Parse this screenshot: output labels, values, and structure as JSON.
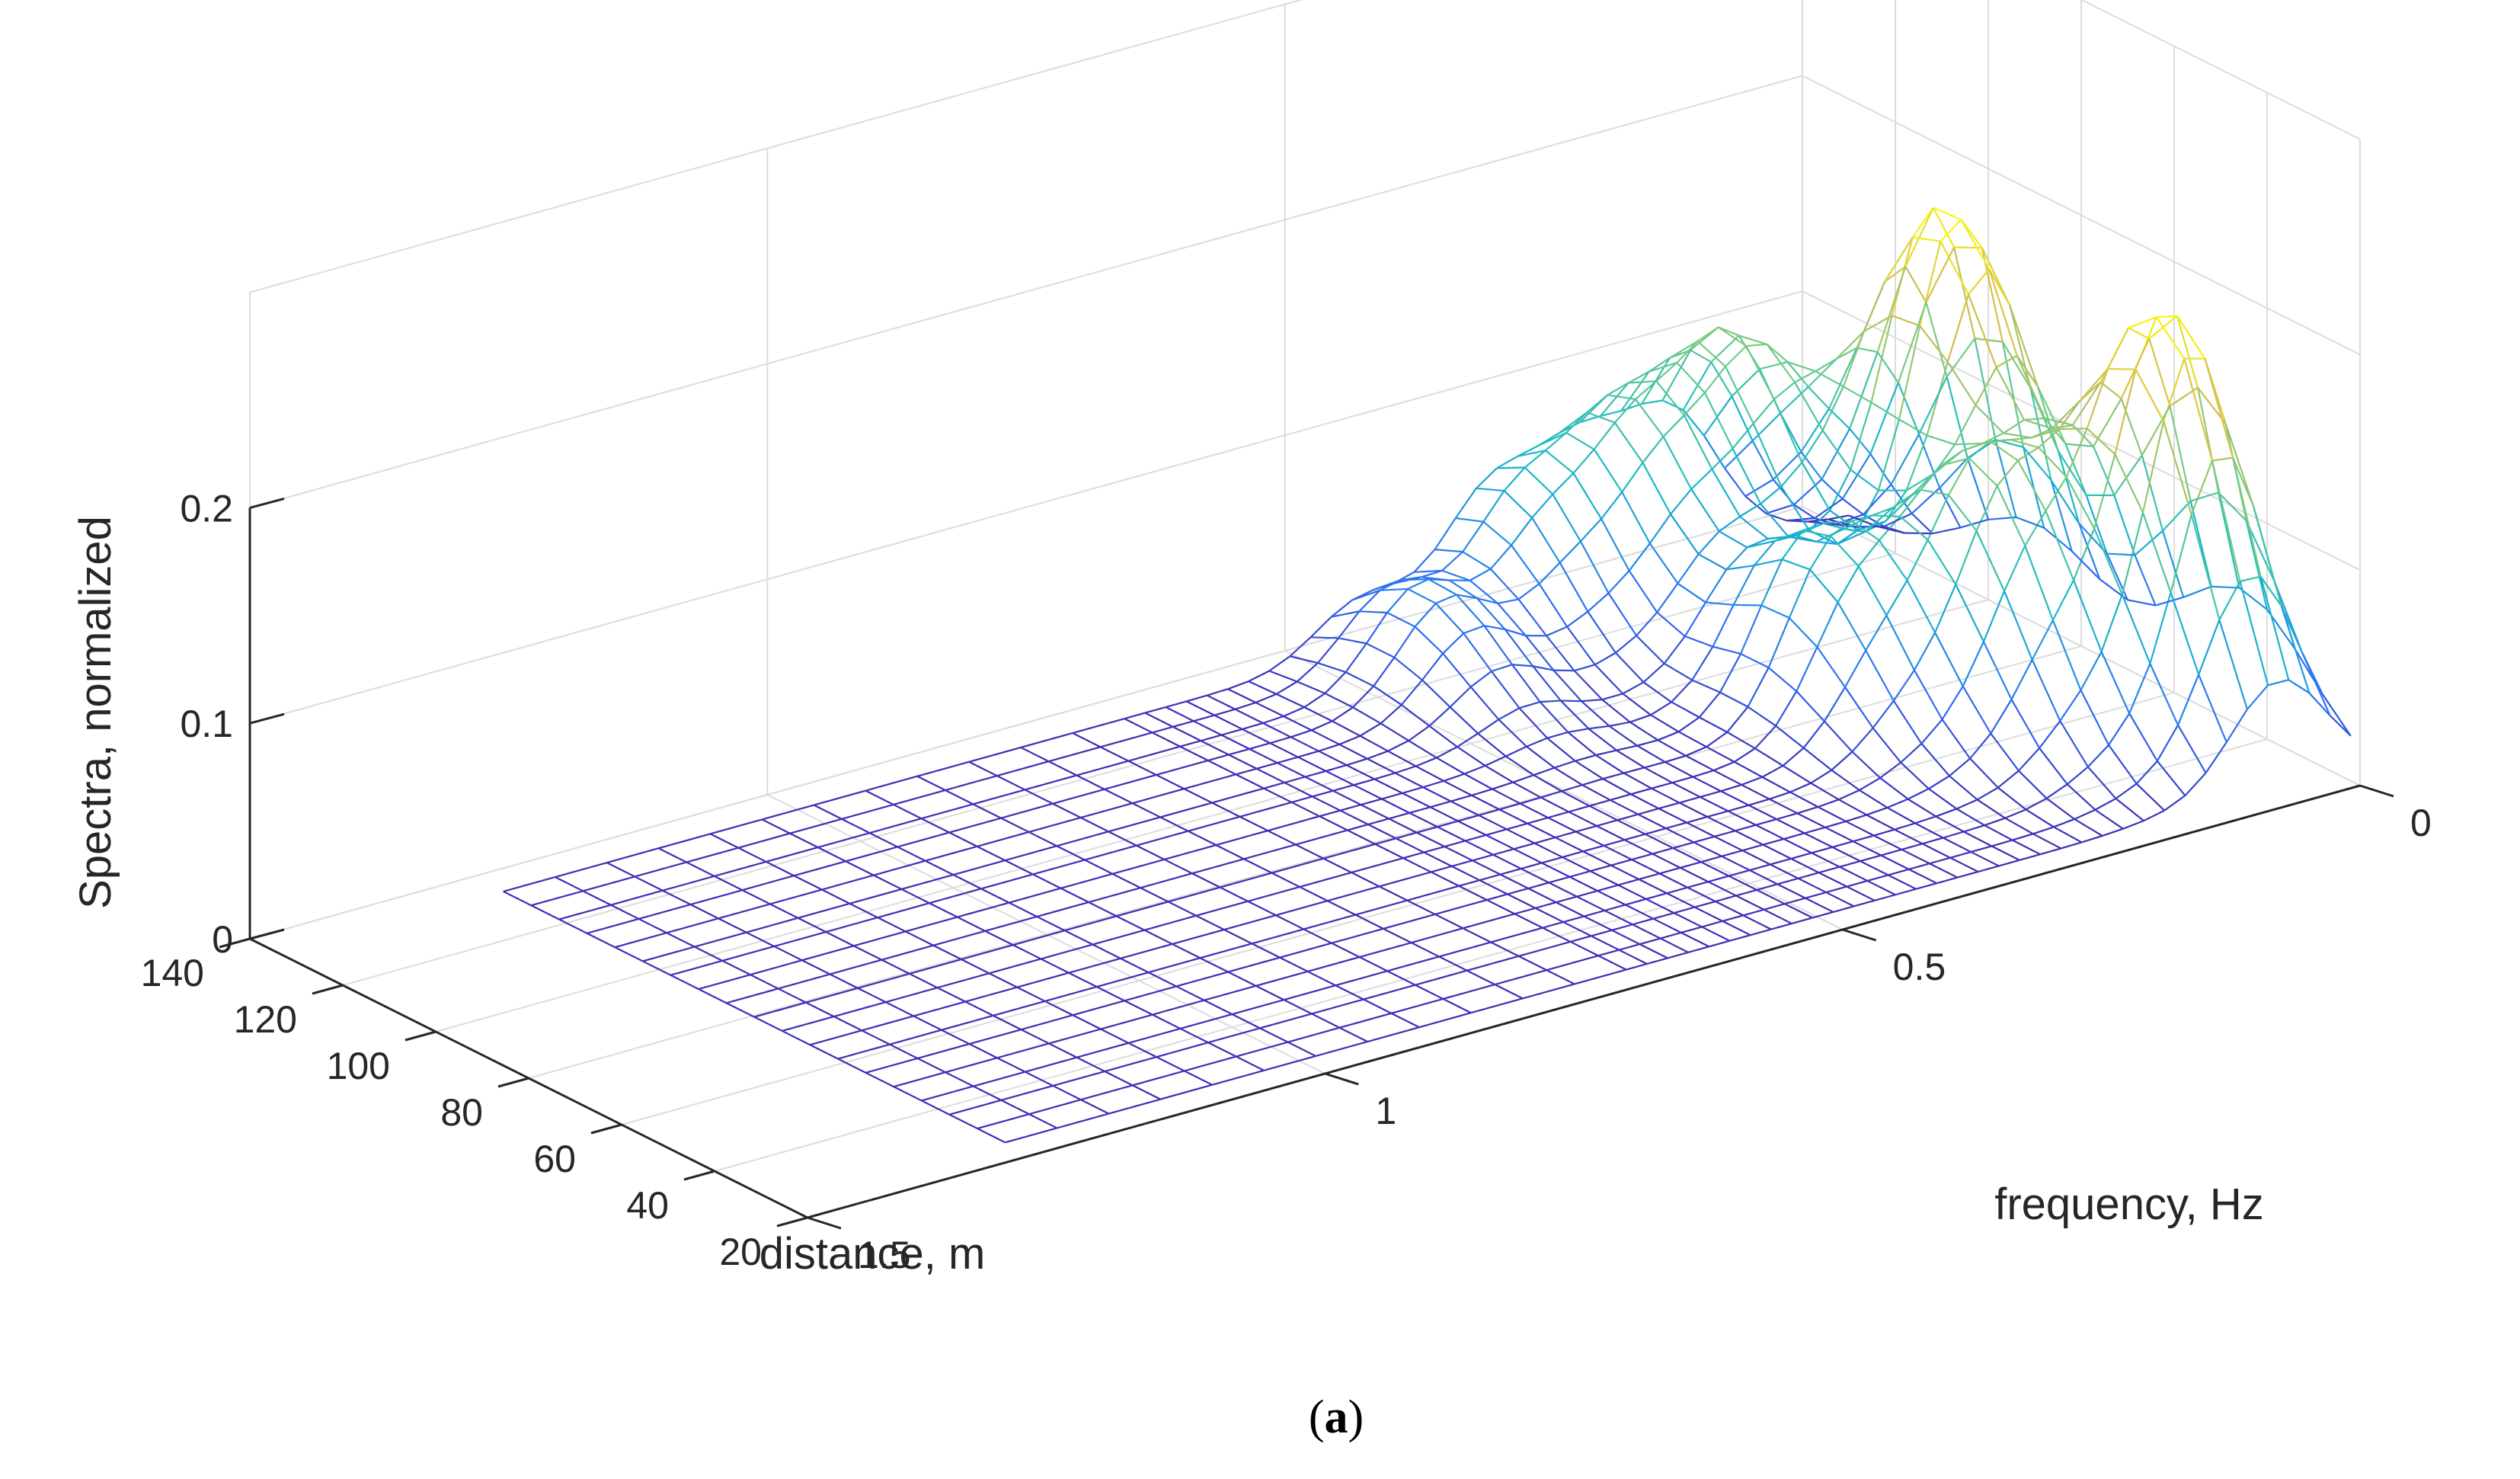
{
  "chart_data": {
    "type": "surface-mesh",
    "caption": {
      "open": "(",
      "letter": "a",
      "close": ")"
    },
    "xlabel": "distance, m",
    "ylabel": "frequency, Hz",
    "zlabel": "Spectra, normalized",
    "x_ticks": [
      "140",
      "120",
      "100",
      "80",
      "60",
      "40",
      "20"
    ],
    "x_tick_values": [
      140,
      120,
      100,
      80,
      60,
      40,
      20
    ],
    "y_ticks": [
      "0",
      "0.5",
      "1",
      "1.5"
    ],
    "y_tick_values": [
      0,
      0.5,
      1,
      1.5
    ],
    "z_ticks": [
      "0",
      "0.1",
      "0.2"
    ],
    "z_tick_values": [
      0,
      0.1,
      0.2
    ],
    "xlim": [
      20,
      140
    ],
    "ylim": [
      0,
      1.5
    ],
    "zlim": [
      0,
      0.2
    ],
    "grid": true,
    "colormap": "parula",
    "colormap_stops": [
      "#3e26a8",
      "#2f6ff6",
      "#17b9c7",
      "#6dcc8a",
      "#d3bd4c",
      "#f9fb0e"
    ],
    "grid_color": "#dcdcdc",
    "axis_color": "#262626",
    "distance_samples": [
      130,
      124,
      118,
      112,
      106,
      100,
      94,
      88,
      82,
      76,
      70,
      64,
      58,
      52,
      46,
      40,
      34,
      28,
      22
    ],
    "frequency_samples": [
      0.0,
      0.02,
      0.04,
      0.06,
      0.08,
      0.1,
      0.12,
      0.14,
      0.16,
      0.18,
      0.2,
      0.22,
      0.24,
      0.26,
      0.28,
      0.3,
      0.32,
      0.34,
      0.36,
      0.38,
      0.4,
      0.42,
      0.44,
      0.46,
      0.48,
      0.5,
      0.52,
      0.54,
      0.56,
      0.58,
      0.6,
      0.62,
      0.64,
      0.66,
      0.68,
      0.7,
      0.75,
      0.8,
      0.85,
      0.9,
      0.95,
      1.0,
      1.05,
      1.1,
      1.15,
      1.2,
      1.25,
      1.3
    ],
    "spectra_peaks": [
      {
        "distance": 90,
        "frequency": 0.08,
        "value": 0.195
      },
      {
        "distance": 45,
        "frequency": 0.07,
        "value": 0.193
      },
      {
        "distance": 116,
        "frequency": 0.17,
        "value": 0.11
      },
      {
        "distance": 62,
        "frequency": 0.17,
        "value": 0.11
      },
      {
        "distance": 120,
        "frequency": 0.26,
        "value": 0.08
      },
      {
        "distance": 78,
        "frequency": 0.26,
        "value": 0.075
      },
      {
        "distance": 125,
        "frequency": 0.35,
        "value": 0.06
      },
      {
        "distance": 115,
        "frequency": 0.47,
        "value": 0.045
      }
    ]
  }
}
